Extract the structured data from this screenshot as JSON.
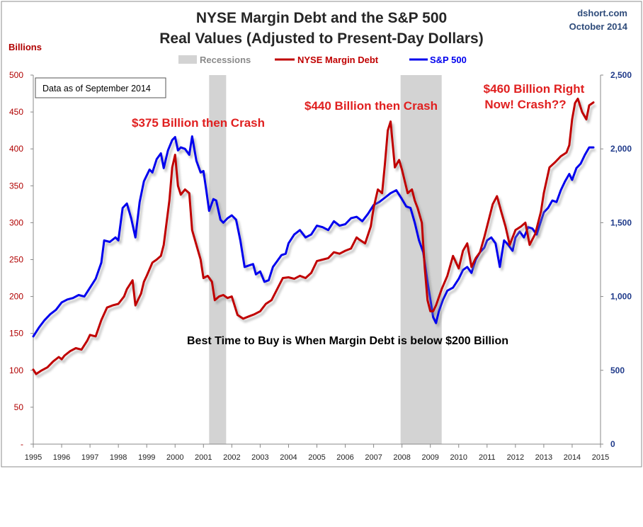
{
  "header": {
    "title_line1": "NYSE Margin Debt and the S&P 500",
    "title_line2": "Real Values (Adjusted to Present-Day Dollars)",
    "source": "dshort.com",
    "date": "October 2014"
  },
  "colors": {
    "margin_debt": "#c00000",
    "sp500": "#0000ee",
    "recession": "#d3d3d3"
  },
  "chart_data": {
    "type": "line",
    "title": "NYSE Margin Debt and the S&P 500 Real Values (Adjusted to Present-Day Dollars)",
    "left_axis_label": "Billions",
    "left_ylim": [
      0,
      500
    ],
    "left_ticks": [
      "-",
      "50",
      "100",
      "150",
      "200",
      "250",
      "300",
      "350",
      "400",
      "450",
      "500"
    ],
    "right_ylim": [
      0,
      2500
    ],
    "right_ticks": [
      "0",
      "500",
      "1,000",
      "1,500",
      "2,000",
      "2,500"
    ],
    "xlim": [
      1995,
      2015
    ],
    "x_ticks": [
      "1995",
      "1996",
      "1997",
      "1998",
      "1999",
      "2000",
      "2001",
      "2002",
      "2003",
      "2004",
      "2005",
      "2006",
      "2007",
      "2008",
      "2009",
      "2010",
      "2011",
      "2012",
      "2013",
      "2014",
      "2015"
    ],
    "legend": {
      "placement": "top-center",
      "entries": [
        "Recessions",
        "NYSE Margin Debt",
        "S&P 500"
      ]
    },
    "recessions": [
      [
        2001.2,
        2001.8
      ],
      [
        2007.95,
        2009.4
      ]
    ],
    "series": [
      {
        "name": "NYSE Margin Debt",
        "axis": "left",
        "x": [
          1995.0,
          1995.1,
          1995.3,
          1995.5,
          1995.7,
          1995.9,
          1996.0,
          1996.1,
          1996.3,
          1996.5,
          1996.7,
          1996.9,
          1997.0,
          1997.2,
          1997.4,
          1997.6,
          1997.8,
          1998.0,
          1998.2,
          1998.3,
          1998.5,
          1998.6,
          1998.8,
          1998.9,
          1999.0,
          1999.2,
          1999.35,
          1999.5,
          1999.6,
          1999.8,
          1999.9,
          2000.0,
          2000.1,
          2000.2,
          2000.35,
          2000.5,
          2000.6,
          2000.75,
          2000.9,
          2001.0,
          2001.15,
          2001.3,
          2001.4,
          2001.55,
          2001.7,
          2001.85,
          2002.0,
          2002.2,
          2002.4,
          2002.6,
          2002.8,
          2003.0,
          2003.2,
          2003.4,
          2003.6,
          2003.8,
          2004.0,
          2004.2,
          2004.4,
          2004.6,
          2004.8,
          2005.0,
          2005.2,
          2005.4,
          2005.6,
          2005.8,
          2006.0,
          2006.2,
          2006.4,
          2006.5,
          2006.7,
          2006.9,
          2007.0,
          2007.15,
          2007.3,
          2007.4,
          2007.5,
          2007.6,
          2007.75,
          2007.9,
          2008.0,
          2008.2,
          2008.35,
          2008.45,
          2008.55,
          2008.7,
          2008.8,
          2008.9,
          2009.0,
          2009.1,
          2009.2,
          2009.4,
          2009.6,
          2009.8,
          2010.0,
          2010.15,
          2010.3,
          2010.45,
          2010.6,
          2010.75,
          2010.9,
          2011.0,
          2011.2,
          2011.35,
          2011.5,
          2011.65,
          2011.8,
          2012.0,
          2012.2,
          2012.35,
          2012.5,
          2012.7,
          2012.9,
          2013.0,
          2013.2,
          2013.4,
          2013.6,
          2013.8,
          2013.9,
          2014.0,
          2014.1,
          2014.2,
          2014.35,
          2014.5,
          2014.6,
          2014.75
        ],
        "values": [
          101,
          95,
          100,
          104,
          112,
          118,
          115,
          120,
          126,
          130,
          128,
          140,
          148,
          146,
          168,
          185,
          188,
          190,
          200,
          210,
          222,
          188,
          204,
          220,
          228,
          246,
          250,
          255,
          270,
          330,
          375,
          392,
          350,
          338,
          345,
          340,
          290,
          270,
          250,
          225,
          228,
          220,
          195,
          200,
          202,
          198,
          200,
          175,
          170,
          173,
          176,
          180,
          190,
          195,
          210,
          225,
          226,
          224,
          228,
          225,
          232,
          248,
          250,
          252,
          260,
          258,
          262,
          265,
          280,
          277,
          272,
          295,
          320,
          345,
          340,
          380,
          425,
          437,
          375,
          385,
          372,
          340,
          345,
          330,
          320,
          300,
          240,
          195,
          180,
          180,
          188,
          210,
          228,
          255,
          238,
          262,
          272,
          240,
          252,
          260,
          280,
          295,
          325,
          336,
          315,
          295,
          270,
          290,
          295,
          300,
          270,
          285,
          315,
          340,
          375,
          382,
          390,
          395,
          405,
          440,
          462,
          468,
          450,
          440,
          459,
          463
        ]
      },
      {
        "name": "S&P 500",
        "axis": "right",
        "x": [
          1995.0,
          1995.2,
          1995.4,
          1995.6,
          1995.8,
          1996.0,
          1996.2,
          1996.4,
          1996.6,
          1996.8,
          1997.0,
          1997.2,
          1997.4,
          1997.5,
          1997.7,
          1997.9,
          1998.0,
          1998.15,
          1998.3,
          1998.45,
          1998.6,
          1998.75,
          1998.9,
          1999.0,
          1999.1,
          1999.2,
          1999.35,
          1999.5,
          1999.6,
          1999.75,
          1999.9,
          2000.0,
          2000.1,
          2000.2,
          2000.35,
          2000.5,
          2000.6,
          2000.75,
          2000.9,
          2001.0,
          2001.1,
          2001.2,
          2001.35,
          2001.45,
          2001.6,
          2001.7,
          2001.85,
          2002.0,
          2002.15,
          2002.3,
          2002.45,
          2002.6,
          2002.75,
          2002.85,
          2003.0,
          2003.15,
          2003.3,
          2003.45,
          2003.6,
          2003.75,
          2003.9,
          2004.0,
          2004.2,
          2004.4,
          2004.6,
          2004.8,
          2005.0,
          2005.2,
          2005.4,
          2005.6,
          2005.8,
          2006.0,
          2006.2,
          2006.4,
          2006.6,
          2006.8,
          2007.0,
          2007.2,
          2007.4,
          2007.6,
          2007.8,
          2008.0,
          2008.15,
          2008.3,
          2008.45,
          2008.6,
          2008.75,
          2008.9,
          2009.0,
          2009.1,
          2009.2,
          2009.3,
          2009.45,
          2009.6,
          2009.8,
          2010.0,
          2010.15,
          2010.3,
          2010.45,
          2010.6,
          2010.75,
          2010.9,
          2011.0,
          2011.15,
          2011.3,
          2011.45,
          2011.6,
          2011.75,
          2011.9,
          2012.0,
          2012.15,
          2012.3,
          2012.45,
          2012.6,
          2012.75,
          2012.9,
          2013.0,
          2013.15,
          2013.3,
          2013.45,
          2013.6,
          2013.75,
          2013.9,
          2014.0,
          2014.15,
          2014.3,
          2014.45,
          2014.6,
          2014.75
        ],
        "values": [
          730,
          790,
          840,
          880,
          910,
          960,
          980,
          990,
          1010,
          1000,
          1060,
          1120,
          1230,
          1380,
          1370,
          1400,
          1380,
          1600,
          1630,
          1530,
          1400,
          1640,
          1780,
          1820,
          1860,
          1840,
          1930,
          1970,
          1870,
          1990,
          2060,
          2080,
          1990,
          2010,
          2000,
          1960,
          2085,
          1920,
          1840,
          1850,
          1720,
          1580,
          1660,
          1650,
          1520,
          1500,
          1530,
          1550,
          1520,
          1380,
          1200,
          1210,
          1220,
          1150,
          1170,
          1100,
          1110,
          1200,
          1240,
          1280,
          1290,
          1360,
          1420,
          1450,
          1400,
          1420,
          1480,
          1470,
          1450,
          1510,
          1480,
          1490,
          1530,
          1540,
          1510,
          1560,
          1620,
          1640,
          1670,
          1700,
          1720,
          1660,
          1610,
          1600,
          1500,
          1380,
          1300,
          1100,
          980,
          860,
          820,
          900,
          980,
          1040,
          1060,
          1120,
          1180,
          1200,
          1160,
          1250,
          1300,
          1330,
          1380,
          1400,
          1360,
          1200,
          1380,
          1350,
          1310,
          1400,
          1440,
          1400,
          1470,
          1460,
          1420,
          1510,
          1570,
          1600,
          1650,
          1640,
          1720,
          1780,
          1830,
          1790,
          1870,
          1900,
          1960,
          2010,
          2010
        ]
      }
    ],
    "annotations": [
      "$375 Billion then Crash",
      "$440 Billion then Crash",
      "$460 Billion Right",
      "Now! Crash??",
      "Best Time to Buy is When Margin Debt is below $200 Billion"
    ],
    "data_note": "Data as of September 2014"
  }
}
